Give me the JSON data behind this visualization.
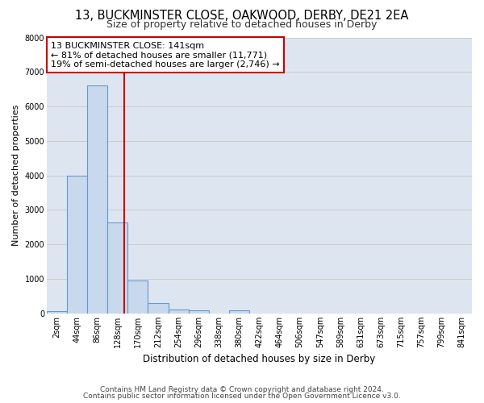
{
  "title": "13, BUCKMINSTER CLOSE, OAKWOOD, DERBY, DE21 2EA",
  "subtitle": "Size of property relative to detached houses in Derby",
  "xlabel": "Distribution of detached houses by size in Derby",
  "ylabel": "Number of detached properties",
  "bin_labels": [
    "2sqm",
    "44sqm",
    "86sqm",
    "128sqm",
    "170sqm",
    "212sqm",
    "254sqm",
    "296sqm",
    "338sqm",
    "380sqm",
    "422sqm",
    "464sqm",
    "506sqm",
    "547sqm",
    "589sqm",
    "631sqm",
    "673sqm",
    "715sqm",
    "757sqm",
    "799sqm",
    "841sqm"
  ],
  "bar_values": [
    60,
    4000,
    6600,
    2630,
    950,
    310,
    120,
    100,
    0,
    100,
    0,
    0,
    0,
    0,
    0,
    0,
    0,
    0,
    0,
    0,
    0
  ],
  "bar_color": "#c8d9ee",
  "bar_edge_color": "#6699cc",
  "vline_color": "#cc0000",
  "annotation_line1": "13 BUCKMINSTER CLOSE: 141sqm",
  "annotation_line2": "← 81% of detached houses are smaller (11,771)",
  "annotation_line3": "19% of semi-detached houses are larger (2,746) →",
  "annotation_box_facecolor": "#ffffff",
  "annotation_box_edgecolor": "#cc0000",
  "ylim": [
    0,
    8000
  ],
  "yticks": [
    0,
    1000,
    2000,
    3000,
    4000,
    5000,
    6000,
    7000,
    8000
  ],
  "grid_color": "#cccccc",
  "fig_bg_color": "#ffffff",
  "plot_bg_color": "#dde6f0",
  "footer_text1": "Contains HM Land Registry data © Crown copyright and database right 2024.",
  "footer_text2": "Contains public sector information licensed under the Open Government Licence v3.0.",
  "title_fontsize": 10.5,
  "subtitle_fontsize": 9,
  "xlabel_fontsize": 8.5,
  "ylabel_fontsize": 8,
  "tick_fontsize": 7,
  "annotation_fontsize": 8,
  "footer_fontsize": 6.5
}
